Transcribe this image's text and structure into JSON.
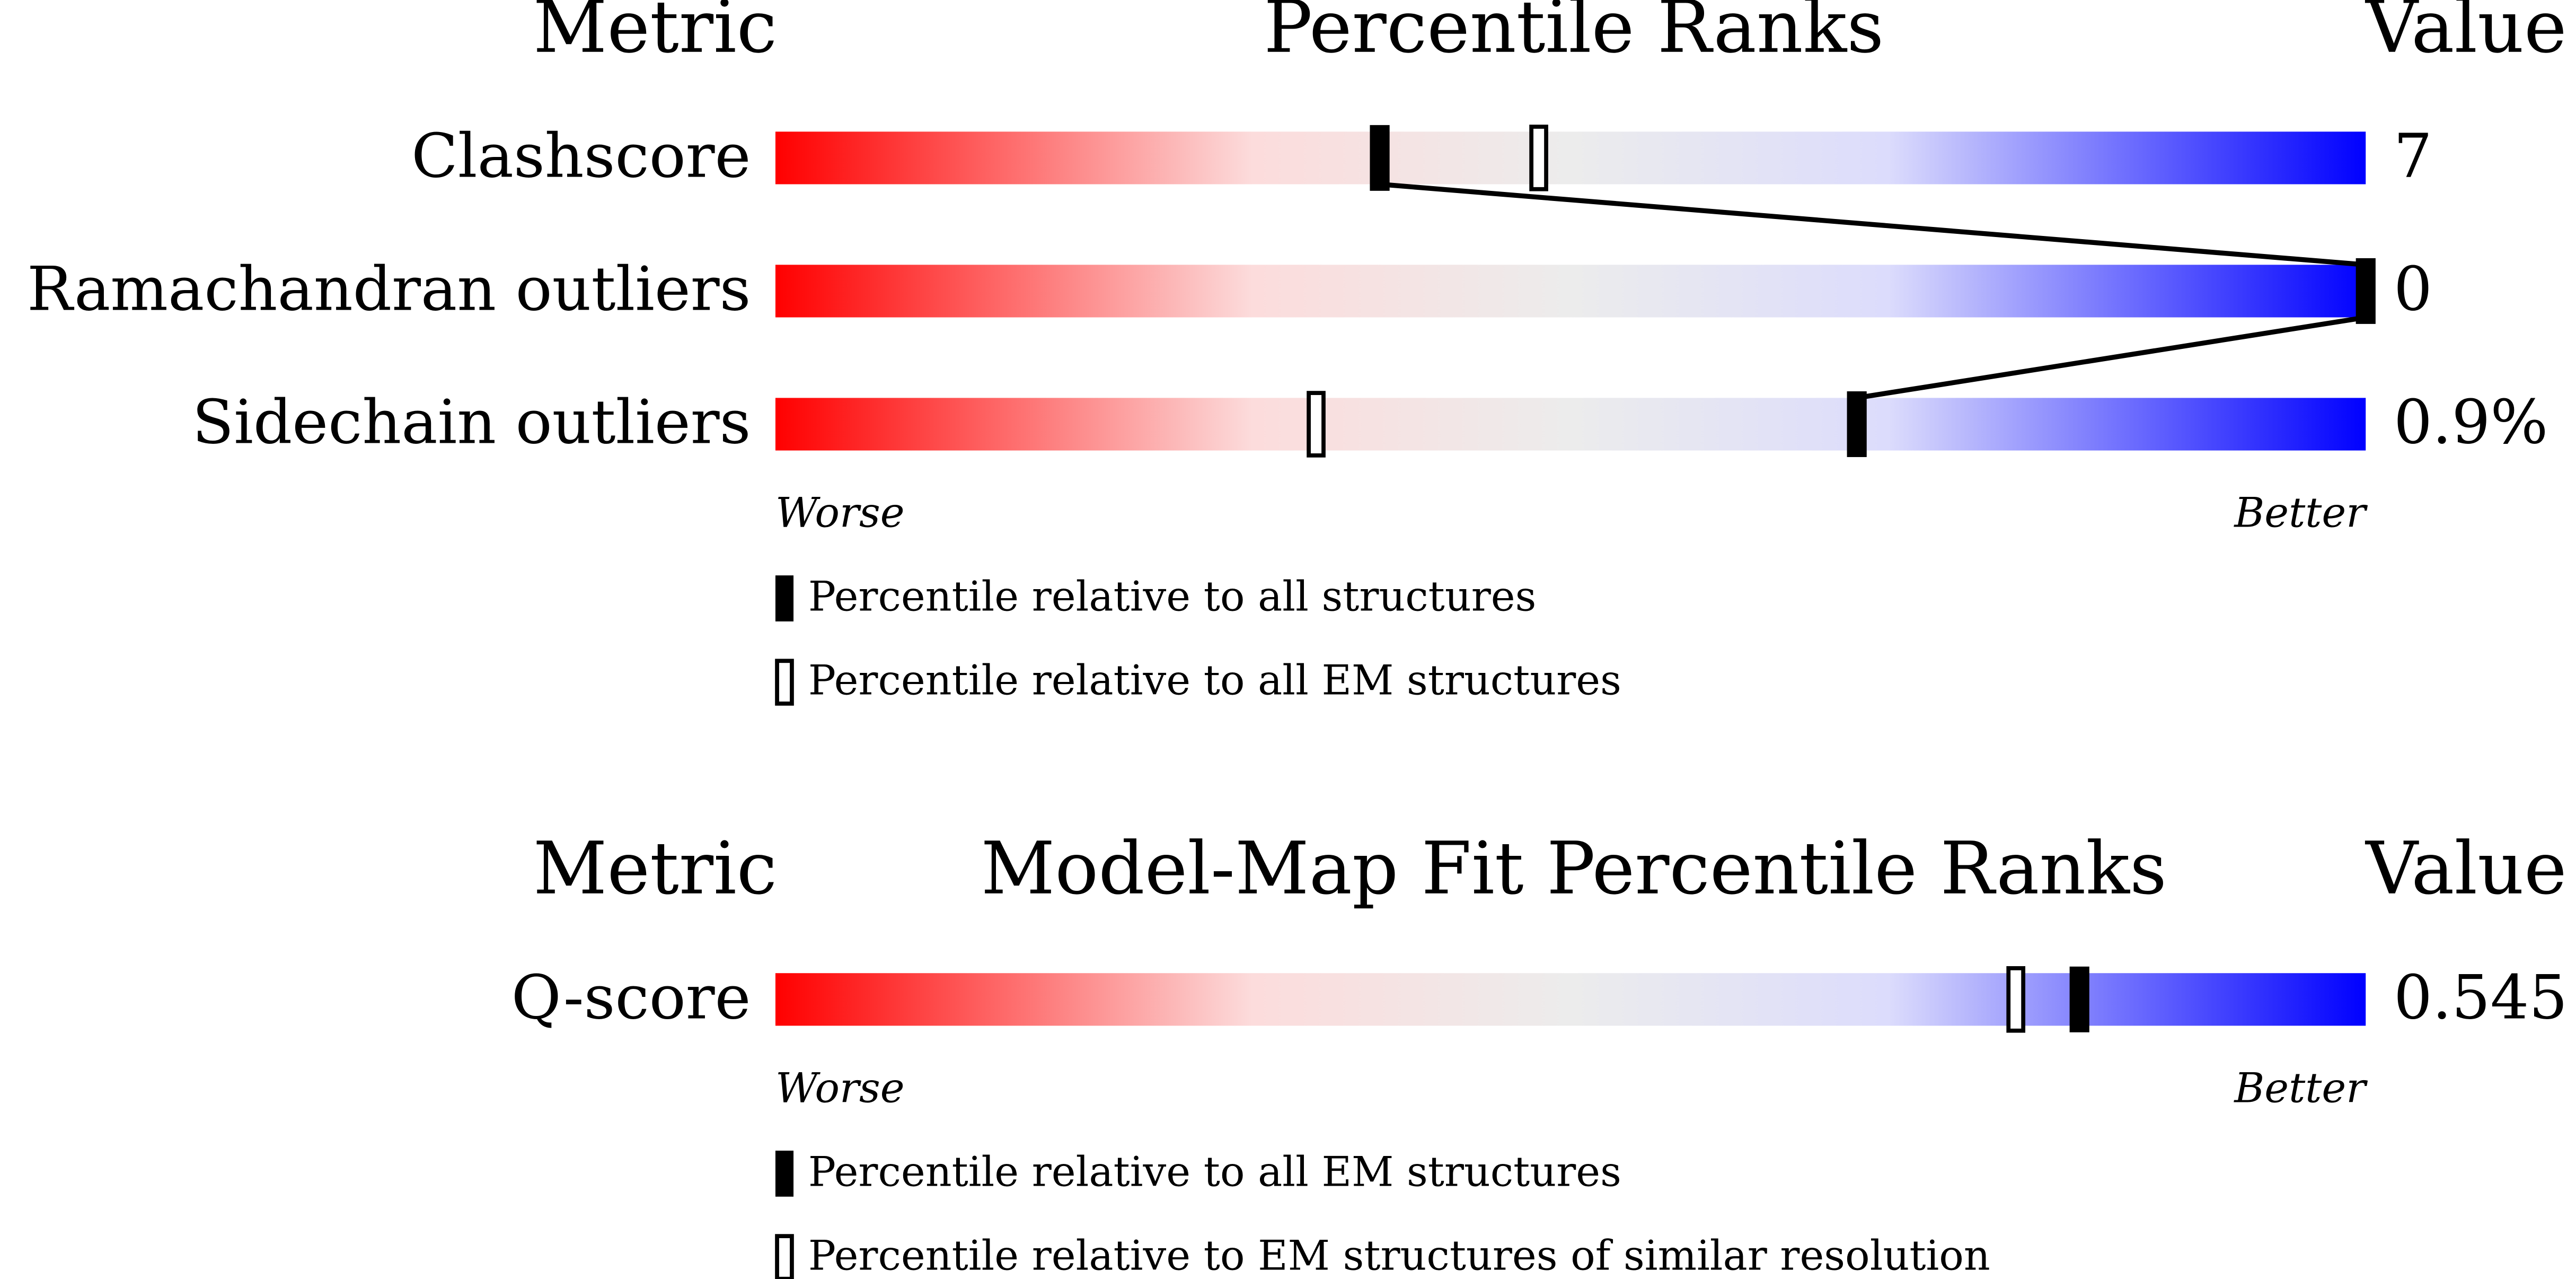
{
  "chart_data": [
    {
      "type": "slider",
      "header_metric": "Metric",
      "title": "Percentile Ranks",
      "header_value": "Value",
      "categories": [
        "Clashscore",
        "Ramachandran outliers",
        "Sidechain outliers"
      ],
      "metric_values": [
        "7",
        "0",
        "0.9%"
      ],
      "series": [
        {
          "name": "Percentile relative to all structures",
          "style": "filled",
          "values": [
            38,
            100,
            68
          ]
        },
        {
          "name": "Percentile relative to all EM structures",
          "style": "open",
          "values": [
            48,
            null,
            34
          ]
        }
      ],
      "xlim": [
        0,
        100
      ],
      "left_label": "Worse",
      "right_label": "Better",
      "connect_series": 0
    },
    {
      "type": "slider",
      "header_metric": "Metric",
      "title": "Model-Map Fit Percentile Ranks",
      "header_value": "Value",
      "categories": [
        "Q-score"
      ],
      "metric_values": [
        "0.545"
      ],
      "series": [
        {
          "name": "Percentile relative to all EM structures",
          "style": "filled",
          "values": [
            82
          ]
        },
        {
          "name": "Percentile relative to EM structures of similar resolution",
          "style": "open",
          "values": [
            78
          ]
        }
      ],
      "xlim": [
        0,
        100
      ],
      "left_label": "Worse",
      "right_label": "Better"
    }
  ]
}
